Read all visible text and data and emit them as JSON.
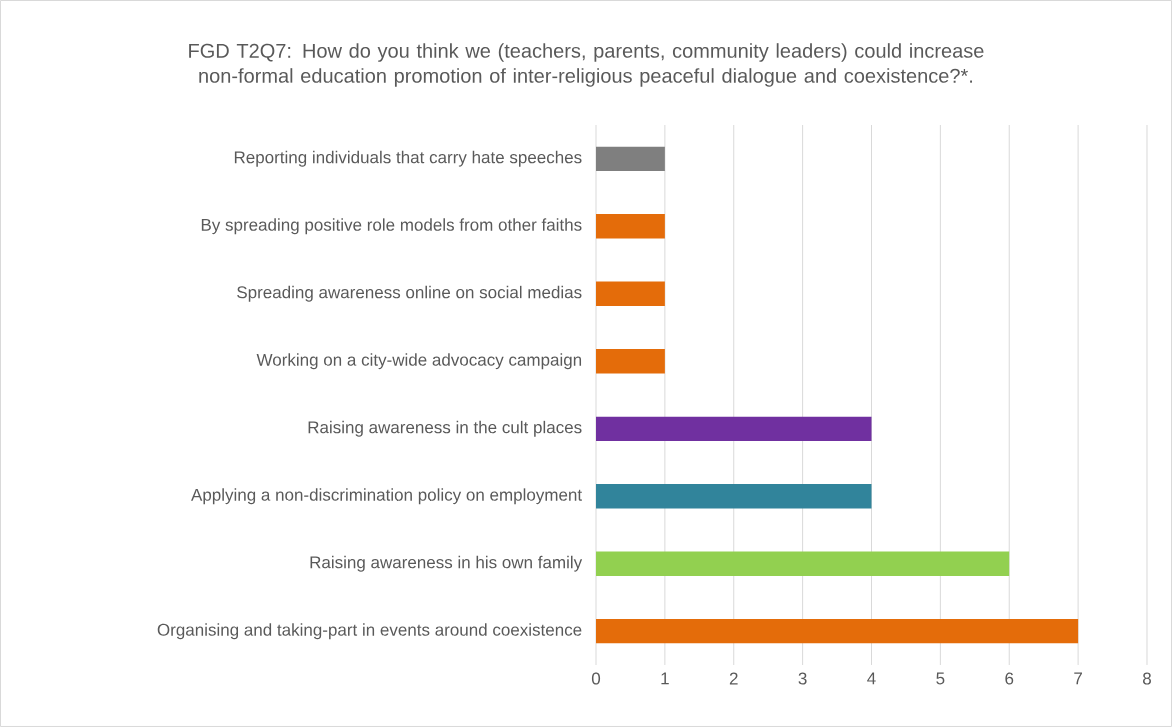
{
  "chart_data": {
    "type": "bar",
    "orientation": "horizontal",
    "title": "FGD T2Q7: How do you think we (teachers, parents, community leaders) could increase non-formal education promotion of inter-religious peaceful dialogue and coexistence?*.",
    "categories": [
      "Reporting individuals that carry hate speeches",
      "By spreading positive role models from other faiths",
      "Spreading awareness online on social medias",
      "Working on a city-wide advocacy campaign",
      "Raising awareness in the cult places",
      "Applying a non-discrimination policy on employment",
      "Raising awareness in his own family",
      "Organising and taking-part in events around coexistence"
    ],
    "values": [
      1,
      1,
      1,
      1,
      4,
      4,
      6,
      7
    ],
    "colors": [
      "#7f7f7f",
      "#e46c0a",
      "#e46c0a",
      "#e46c0a",
      "#7030a0",
      "#31849b",
      "#92d050",
      "#e46c0a"
    ],
    "xlim": [
      0,
      8
    ],
    "xticks": [
      0,
      1,
      2,
      3,
      4,
      5,
      6,
      7,
      8
    ],
    "grid": "x"
  }
}
